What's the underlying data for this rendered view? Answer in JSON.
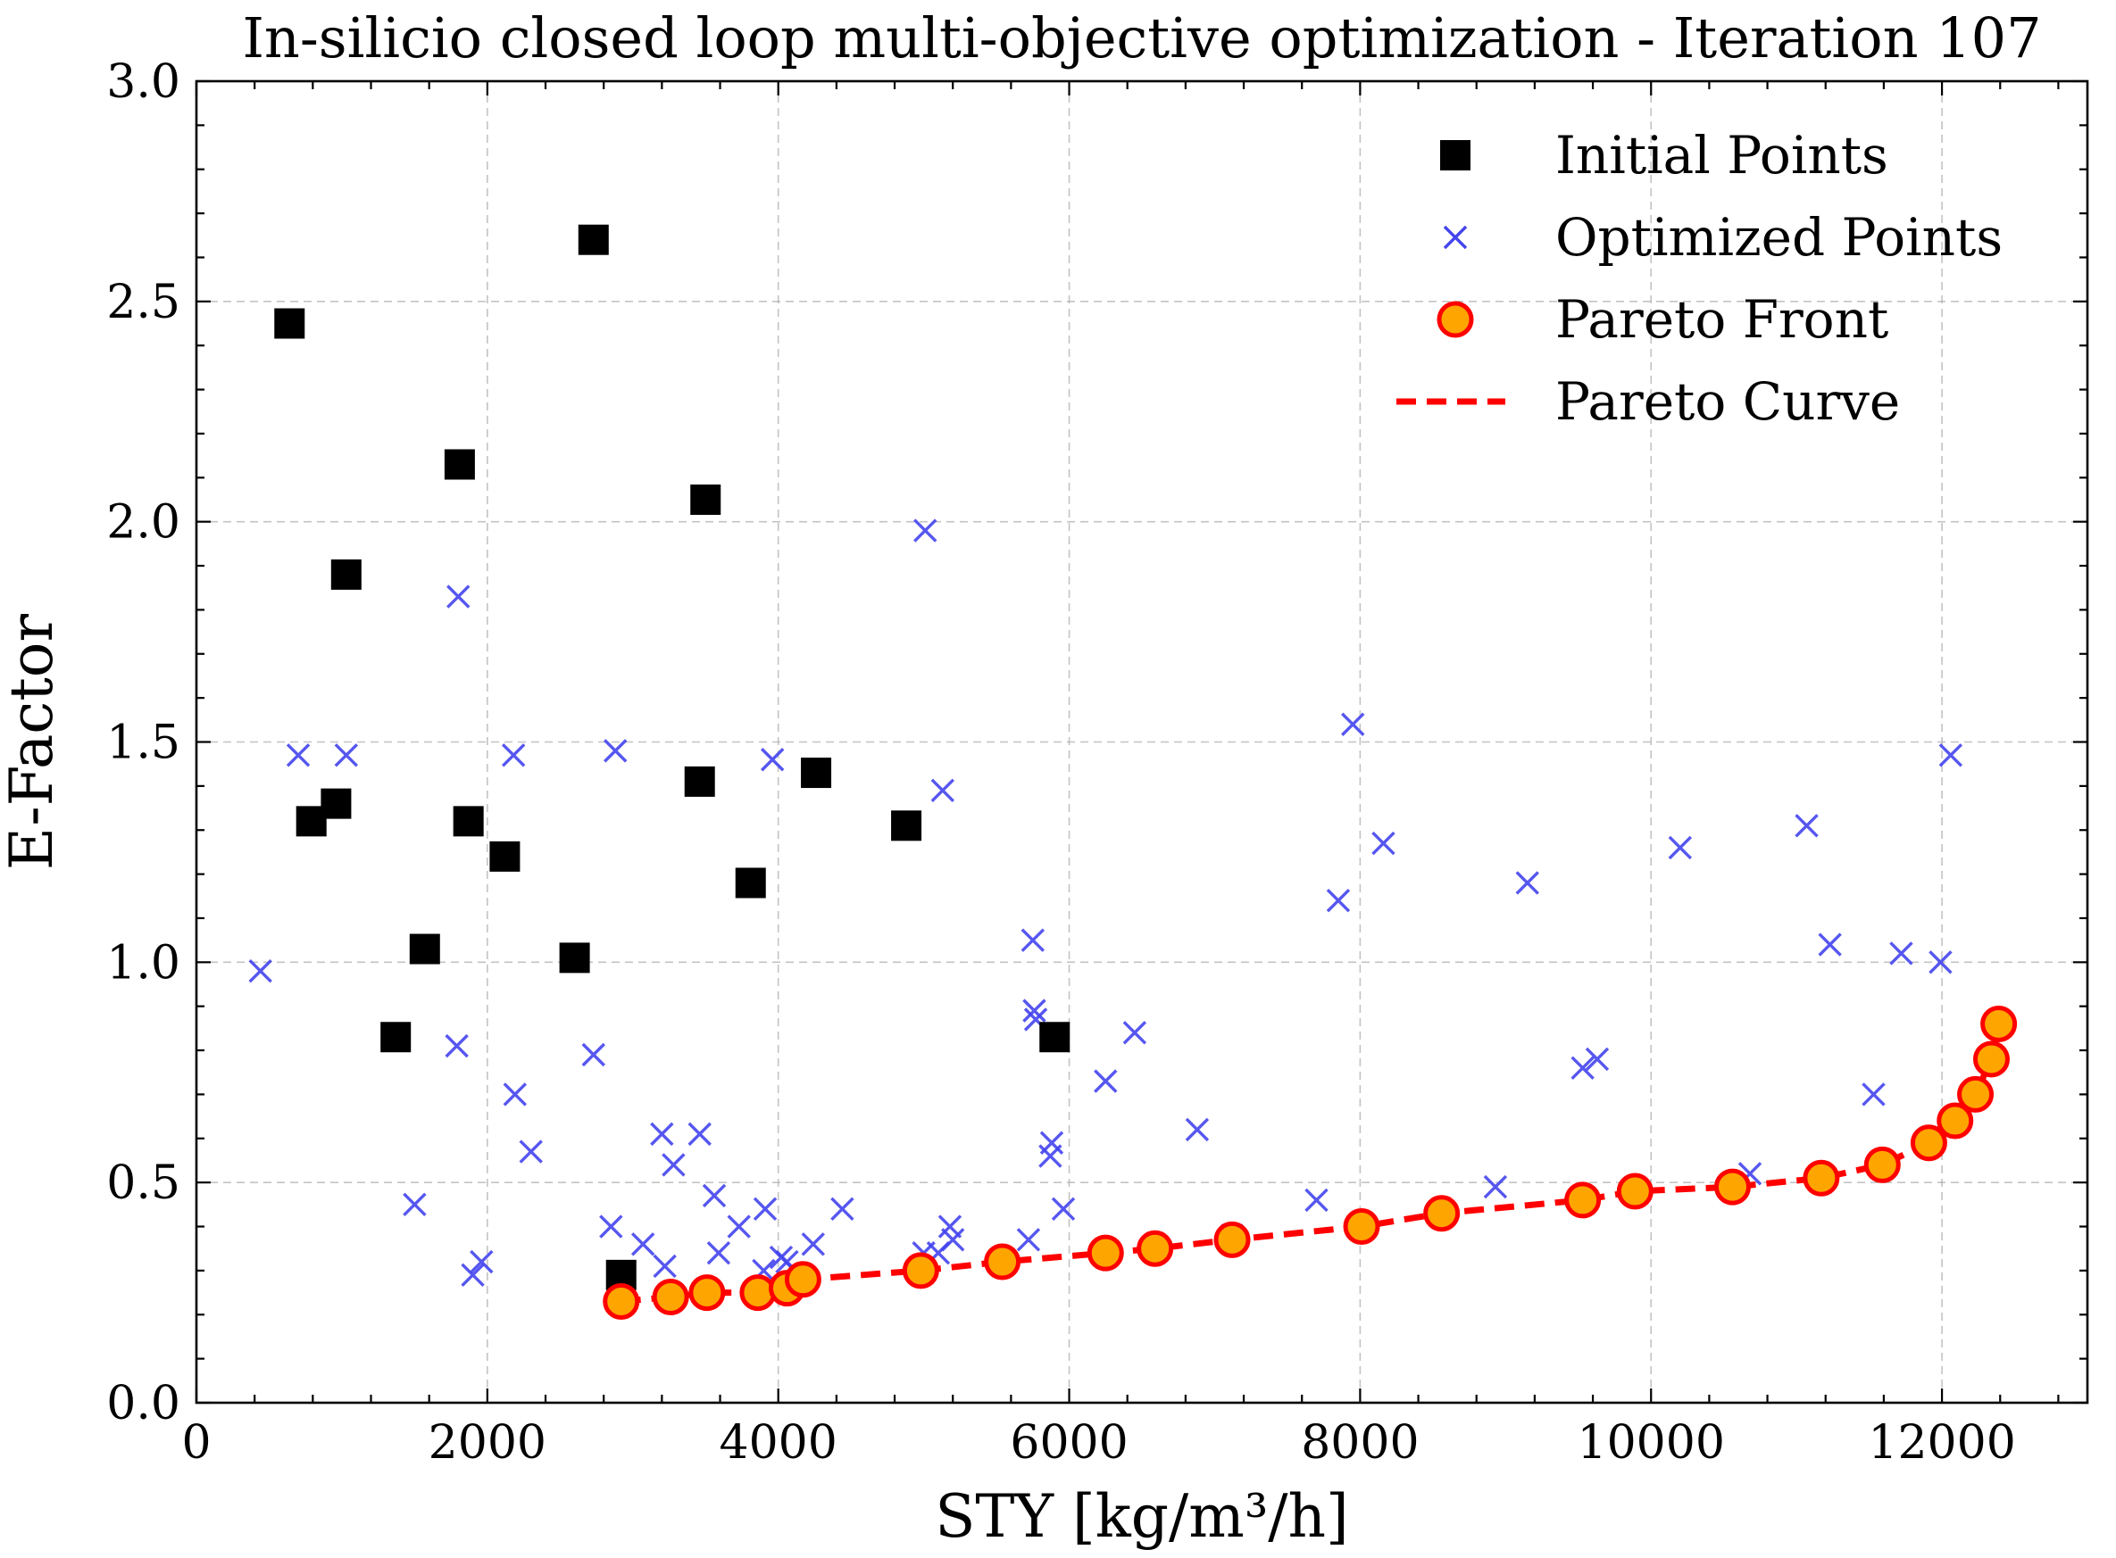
{
  "chart_data": {
    "type": "scatter",
    "title": "In-silicio closed loop multi-objective optimization - Iteration 107",
    "xlabel": "STY [kg/m³/h]",
    "ylabel": "E-Factor",
    "xlim": [
      0,
      13000
    ],
    "ylim": [
      0.0,
      3.0
    ],
    "x_ticks": [
      0,
      2000,
      4000,
      6000,
      8000,
      10000,
      12000
    ],
    "x_tick_labels": [
      "0",
      "2000",
      "4000",
      "6000",
      "8000",
      "10000",
      "12000"
    ],
    "y_ticks": [
      0.0,
      0.5,
      1.0,
      1.5,
      2.0,
      2.5,
      3.0
    ],
    "y_tick_labels": [
      "0.0",
      "0.5",
      "1.0",
      "1.5",
      "2.0",
      "2.5",
      "3.0"
    ],
    "grid": true,
    "legend_position": "top-right",
    "colors": {
      "initial": "#000000",
      "optimized": "#4444ee",
      "pareto_fill": "#ffa500",
      "pareto_edge": "#ff0000",
      "curve": "#ff0000"
    },
    "series": [
      {
        "name": "Initial Points",
        "marker": "square",
        "points": [
          [
            640,
            2.45
          ],
          [
            790,
            1.32
          ],
          [
            960,
            1.36
          ],
          [
            1030,
            1.88
          ],
          [
            1370,
            0.83
          ],
          [
            1570,
            1.03
          ],
          [
            1810,
            2.13
          ],
          [
            1870,
            1.32
          ],
          [
            2120,
            1.24
          ],
          [
            2600,
            1.01
          ],
          [
            2730,
            2.64
          ],
          [
            2920,
            0.29
          ],
          [
            3460,
            1.41
          ],
          [
            3500,
            2.05
          ],
          [
            3810,
            1.18
          ],
          [
            4260,
            1.43
          ],
          [
            4880,
            1.31
          ],
          [
            5900,
            0.83
          ]
        ]
      },
      {
        "name": "Optimized Points",
        "marker": "x",
        "points": [
          [
            440,
            0.98
          ],
          [
            700,
            1.47
          ],
          [
            1030,
            1.47
          ],
          [
            1500,
            0.45
          ],
          [
            1790,
            0.81
          ],
          [
            1800,
            1.83
          ],
          [
            1900,
            0.29
          ],
          [
            1960,
            0.32
          ],
          [
            2180,
            1.47
          ],
          [
            2190,
            0.7
          ],
          [
            2300,
            0.57
          ],
          [
            2730,
            0.79
          ],
          [
            2850,
            0.4
          ],
          [
            2880,
            1.48
          ],
          [
            3070,
            0.36
          ],
          [
            3200,
            0.61
          ],
          [
            3220,
            0.31
          ],
          [
            3280,
            0.54
          ],
          [
            3460,
            0.61
          ],
          [
            3560,
            0.47
          ],
          [
            3590,
            0.34
          ],
          [
            3730,
            0.4
          ],
          [
            3900,
            0.3
          ],
          [
            3910,
            0.44
          ],
          [
            3960,
            1.46
          ],
          [
            4020,
            0.33
          ],
          [
            4060,
            0.32
          ],
          [
            4240,
            0.36
          ],
          [
            4440,
            0.44
          ],
          [
            5010,
            1.98
          ],
          [
            5000,
            0.34
          ],
          [
            5100,
            0.34
          ],
          [
            5130,
            1.39
          ],
          [
            5180,
            0.4
          ],
          [
            5200,
            0.37
          ],
          [
            5720,
            0.37
          ],
          [
            5750,
            1.05
          ],
          [
            5760,
            0.89
          ],
          [
            5770,
            0.87
          ],
          [
            5870,
            0.56
          ],
          [
            5880,
            0.59
          ],
          [
            5960,
            0.44
          ],
          [
            6250,
            0.73
          ],
          [
            6450,
            0.84
          ],
          [
            6880,
            0.62
          ],
          [
            7120,
            0.38
          ],
          [
            7700,
            0.46
          ],
          [
            7850,
            1.14
          ],
          [
            7950,
            1.54
          ],
          [
            8160,
            1.27
          ],
          [
            8930,
            0.49
          ],
          [
            9150,
            1.18
          ],
          [
            9530,
            0.76
          ],
          [
            9630,
            0.78
          ],
          [
            10200,
            1.26
          ],
          [
            10680,
            0.52
          ],
          [
            11070,
            1.31
          ],
          [
            11230,
            1.04
          ],
          [
            11530,
            0.7
          ],
          [
            11720,
            1.02
          ],
          [
            11990,
            1.0
          ],
          [
            12060,
            1.47
          ]
        ]
      },
      {
        "name": "Pareto Front",
        "marker": "circle",
        "points": [
          [
            2920,
            0.23
          ],
          [
            3260,
            0.24
          ],
          [
            3510,
            0.25
          ],
          [
            3860,
            0.25
          ],
          [
            4060,
            0.26
          ],
          [
            4170,
            0.28
          ],
          [
            4980,
            0.3
          ],
          [
            5540,
            0.32
          ],
          [
            6250,
            0.34
          ],
          [
            6590,
            0.35
          ],
          [
            7120,
            0.37
          ],
          [
            8010,
            0.4
          ],
          [
            8560,
            0.43
          ],
          [
            9530,
            0.46
          ],
          [
            9890,
            0.48
          ],
          [
            10560,
            0.49
          ],
          [
            11170,
            0.51
          ],
          [
            11590,
            0.54
          ],
          [
            11910,
            0.59
          ],
          [
            12090,
            0.64
          ],
          [
            12230,
            0.7
          ],
          [
            12340,
            0.78
          ],
          [
            12390,
            0.86
          ]
        ]
      },
      {
        "name": "Pareto Curve",
        "marker": "dashed-line"
      }
    ]
  }
}
